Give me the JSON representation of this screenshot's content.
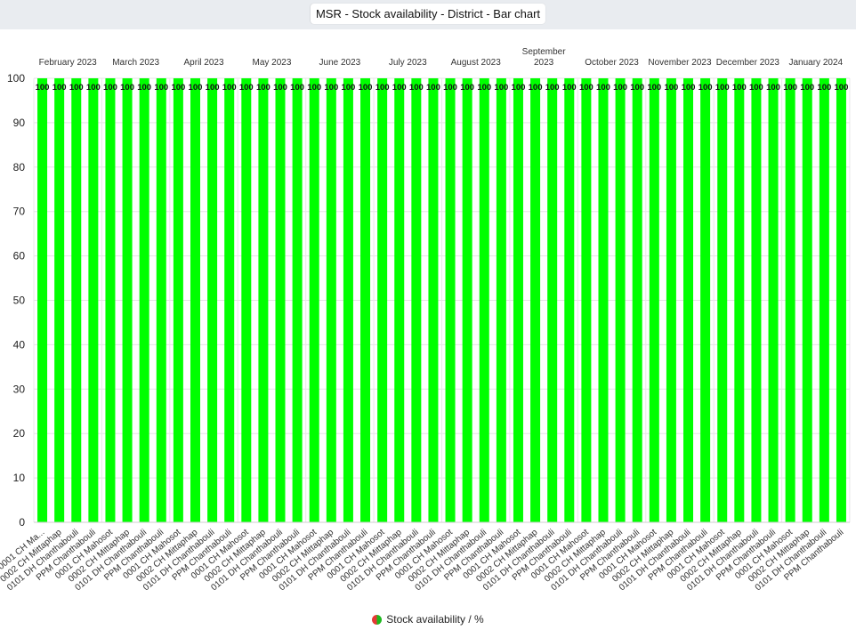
{
  "title": "MSR - Stock availability - District - Bar chart",
  "legend": {
    "label": "Stock availability / %"
  },
  "chart_data": {
    "type": "bar",
    "title": "MSR - Stock availability - District - Bar chart",
    "ylim": [
      0,
      100
    ],
    "yticks": [
      0,
      10,
      20,
      30,
      40,
      50,
      60,
      70,
      80,
      90,
      100
    ],
    "grid": true,
    "legend_position": "bottom",
    "bar_color": "#00ff00",
    "group_labels": [
      "February 2023",
      "March 2023",
      "April 2023",
      "May 2023",
      "June 2023",
      "July 2023",
      "August 2023",
      "September 2023",
      "October 2023",
      "November 2023",
      "December 2023",
      "January 2024"
    ],
    "group_category_labels": [
      "0001 CH Mahosot",
      "0002 CH Mittaphap",
      "0101 DH Chanthabouli",
      "PPM Chanthabouli"
    ],
    "first_label_display": "0001 CH Ma...",
    "series": [
      {
        "name": "Stock availability / %",
        "values": [
          100,
          100,
          100,
          100,
          100,
          100,
          100,
          100,
          100,
          100,
          100,
          100,
          100,
          100,
          100,
          100,
          100,
          100,
          100,
          100,
          100,
          100,
          100,
          100,
          100,
          100,
          100,
          100,
          100,
          100,
          100,
          100,
          100,
          100,
          100,
          100,
          100,
          100,
          100,
          100,
          100,
          100,
          100,
          100,
          100,
          100,
          100,
          100
        ]
      }
    ]
  }
}
